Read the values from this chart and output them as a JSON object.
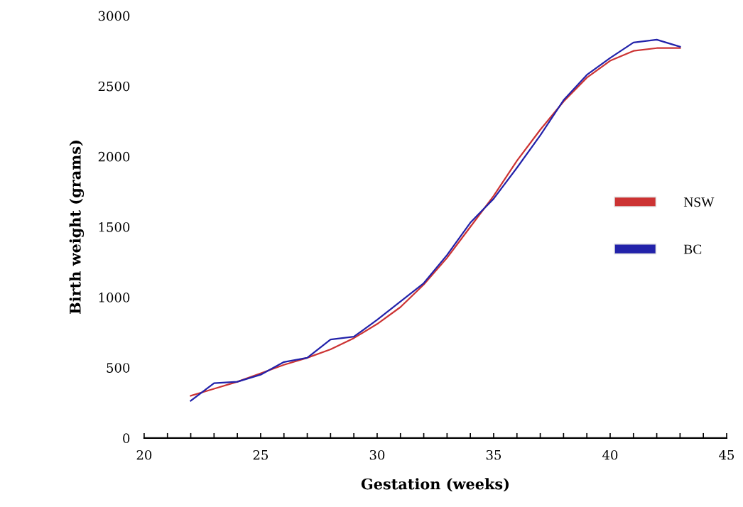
{
  "chart_data": {
    "type": "line",
    "xlabel": "Gestation (weeks)",
    "ylabel": "Birth weight (grams)",
    "x": [
      22,
      23,
      24,
      25,
      26,
      27,
      28,
      29,
      30,
      31,
      32,
      33,
      34,
      35,
      36,
      37,
      38,
      39,
      40,
      41,
      42,
      43
    ],
    "series": [
      {
        "name": "NSW",
        "color": "#cc3333",
        "values": [
          300,
          350,
          400,
          460,
          520,
          570,
          630,
          710,
          810,
          930,
          1090,
          1280,
          1500,
          1720,
          1970,
          2190,
          2390,
          2560,
          2680,
          2750,
          2770,
          2770
        ]
      },
      {
        "name": "BC",
        "color": "#2222aa",
        "values": [
          265,
          390,
          400,
          450,
          540,
          570,
          700,
          720,
          840,
          970,
          1100,
          1300,
          1530,
          1700,
          1920,
          2150,
          2400,
          2580,
          2700,
          2810,
          2830,
          2780
        ]
      }
    ],
    "xlim": [
      20,
      45
    ],
    "xticks": [
      20,
      25,
      30,
      35,
      40,
      45
    ],
    "ylim": [
      0,
      3000
    ],
    "yticks": [
      0,
      500,
      1000,
      1500,
      2000,
      2500,
      3000
    ],
    "grid": false,
    "legend": "right",
    "marker": "none",
    "line_style": "solid"
  }
}
